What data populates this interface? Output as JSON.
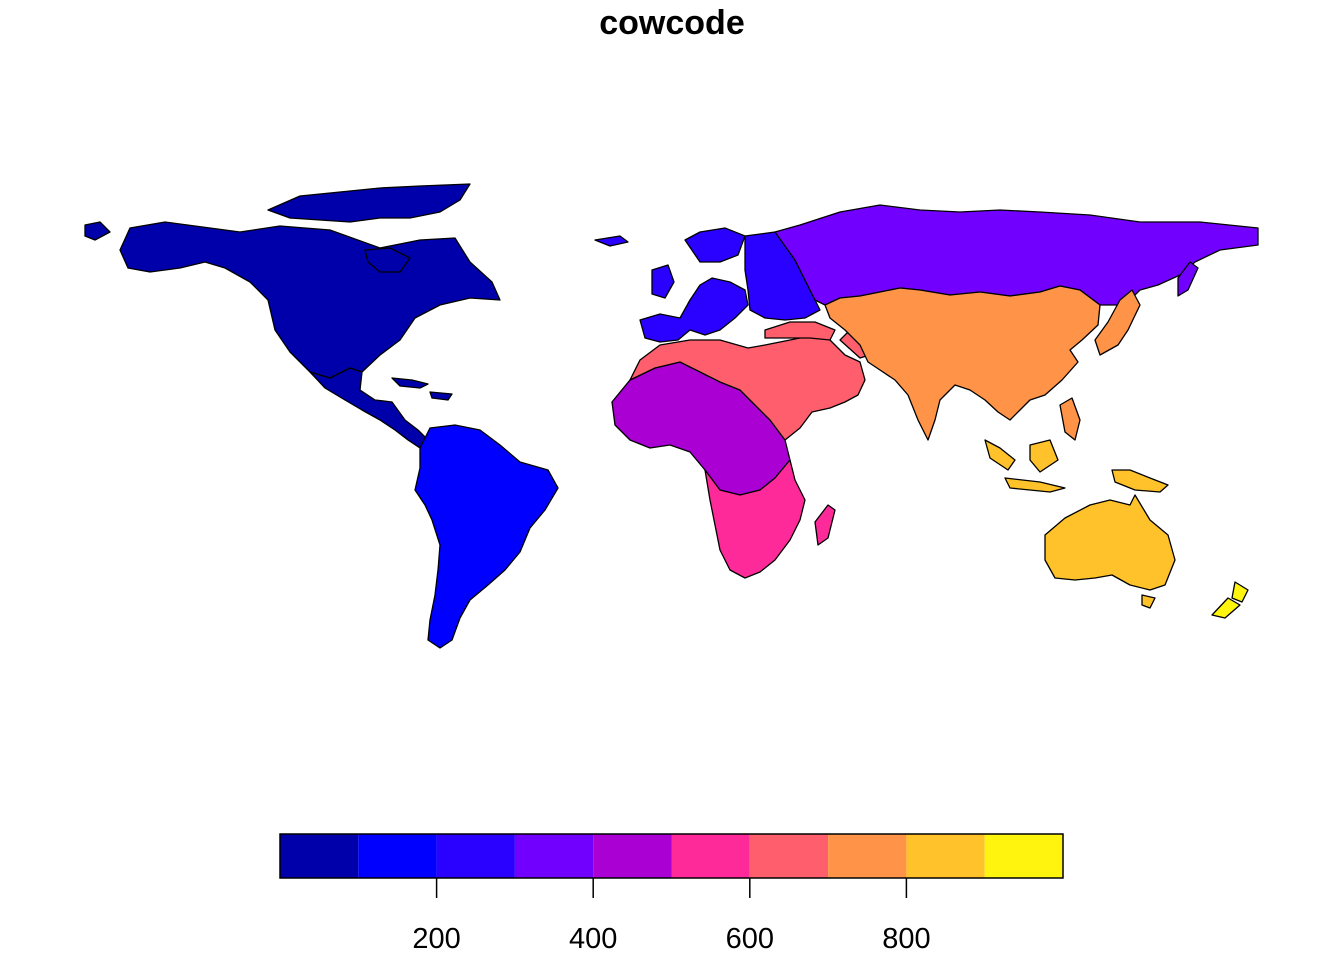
{
  "title": "cowcode",
  "legend": {
    "type": "color-bar",
    "min": 0,
    "max": 1000,
    "bins": [
      {
        "from": 0,
        "to": 100,
        "color": "#0000AA"
      },
      {
        "from": 100,
        "to": 200,
        "color": "#0000FF"
      },
      {
        "from": 200,
        "to": 300,
        "color": "#2A00FF"
      },
      {
        "from": 300,
        "to": 400,
        "color": "#7200FF"
      },
      {
        "from": 400,
        "to": 500,
        "color": "#AA00D4"
      },
      {
        "from": 500,
        "to": 600,
        "color": "#FF2A9A"
      },
      {
        "from": 600,
        "to": 700,
        "color": "#FF5E6C"
      },
      {
        "from": 700,
        "to": 800,
        "color": "#FF9448"
      },
      {
        "from": 800,
        "to": 900,
        "color": "#FFC22A"
      },
      {
        "from": 900,
        "to": 1000,
        "color": "#FFF40E"
      }
    ],
    "ticks": [
      200,
      400,
      600,
      800
    ],
    "tick_labels": [
      "200",
      "400",
      "600",
      "800"
    ]
  },
  "regions": [
    {
      "name": "north-america",
      "value": 20,
      "color": "#0000AA"
    },
    {
      "name": "central-america",
      "value": 90,
      "color": "#0000AA"
    },
    {
      "name": "caribbean-islands",
      "value": 90,
      "color": "#0000AA"
    },
    {
      "name": "south-america",
      "value": 150,
      "color": "#0000FF"
    },
    {
      "name": "western-europe",
      "value": 220,
      "color": "#2A00FF"
    },
    {
      "name": "eastern-europe",
      "value": 300,
      "color": "#2A00FF"
    },
    {
      "name": "russia",
      "value": 365,
      "color": "#7200FF"
    },
    {
      "name": "west-central-africa",
      "value": 450,
      "color": "#AA00D4"
    },
    {
      "name": "southern-east-africa",
      "value": 560,
      "color": "#FF2A9A"
    },
    {
      "name": "north-africa-middle-east",
      "value": 650,
      "color": "#FF5E6C"
    },
    {
      "name": "asia",
      "value": 750,
      "color": "#FF9448"
    },
    {
      "name": "australia-new-guinea",
      "value": 900,
      "color": "#FFC22A"
    },
    {
      "name": "new-zealand",
      "value": 920,
      "color": "#FFF40E"
    }
  ]
}
